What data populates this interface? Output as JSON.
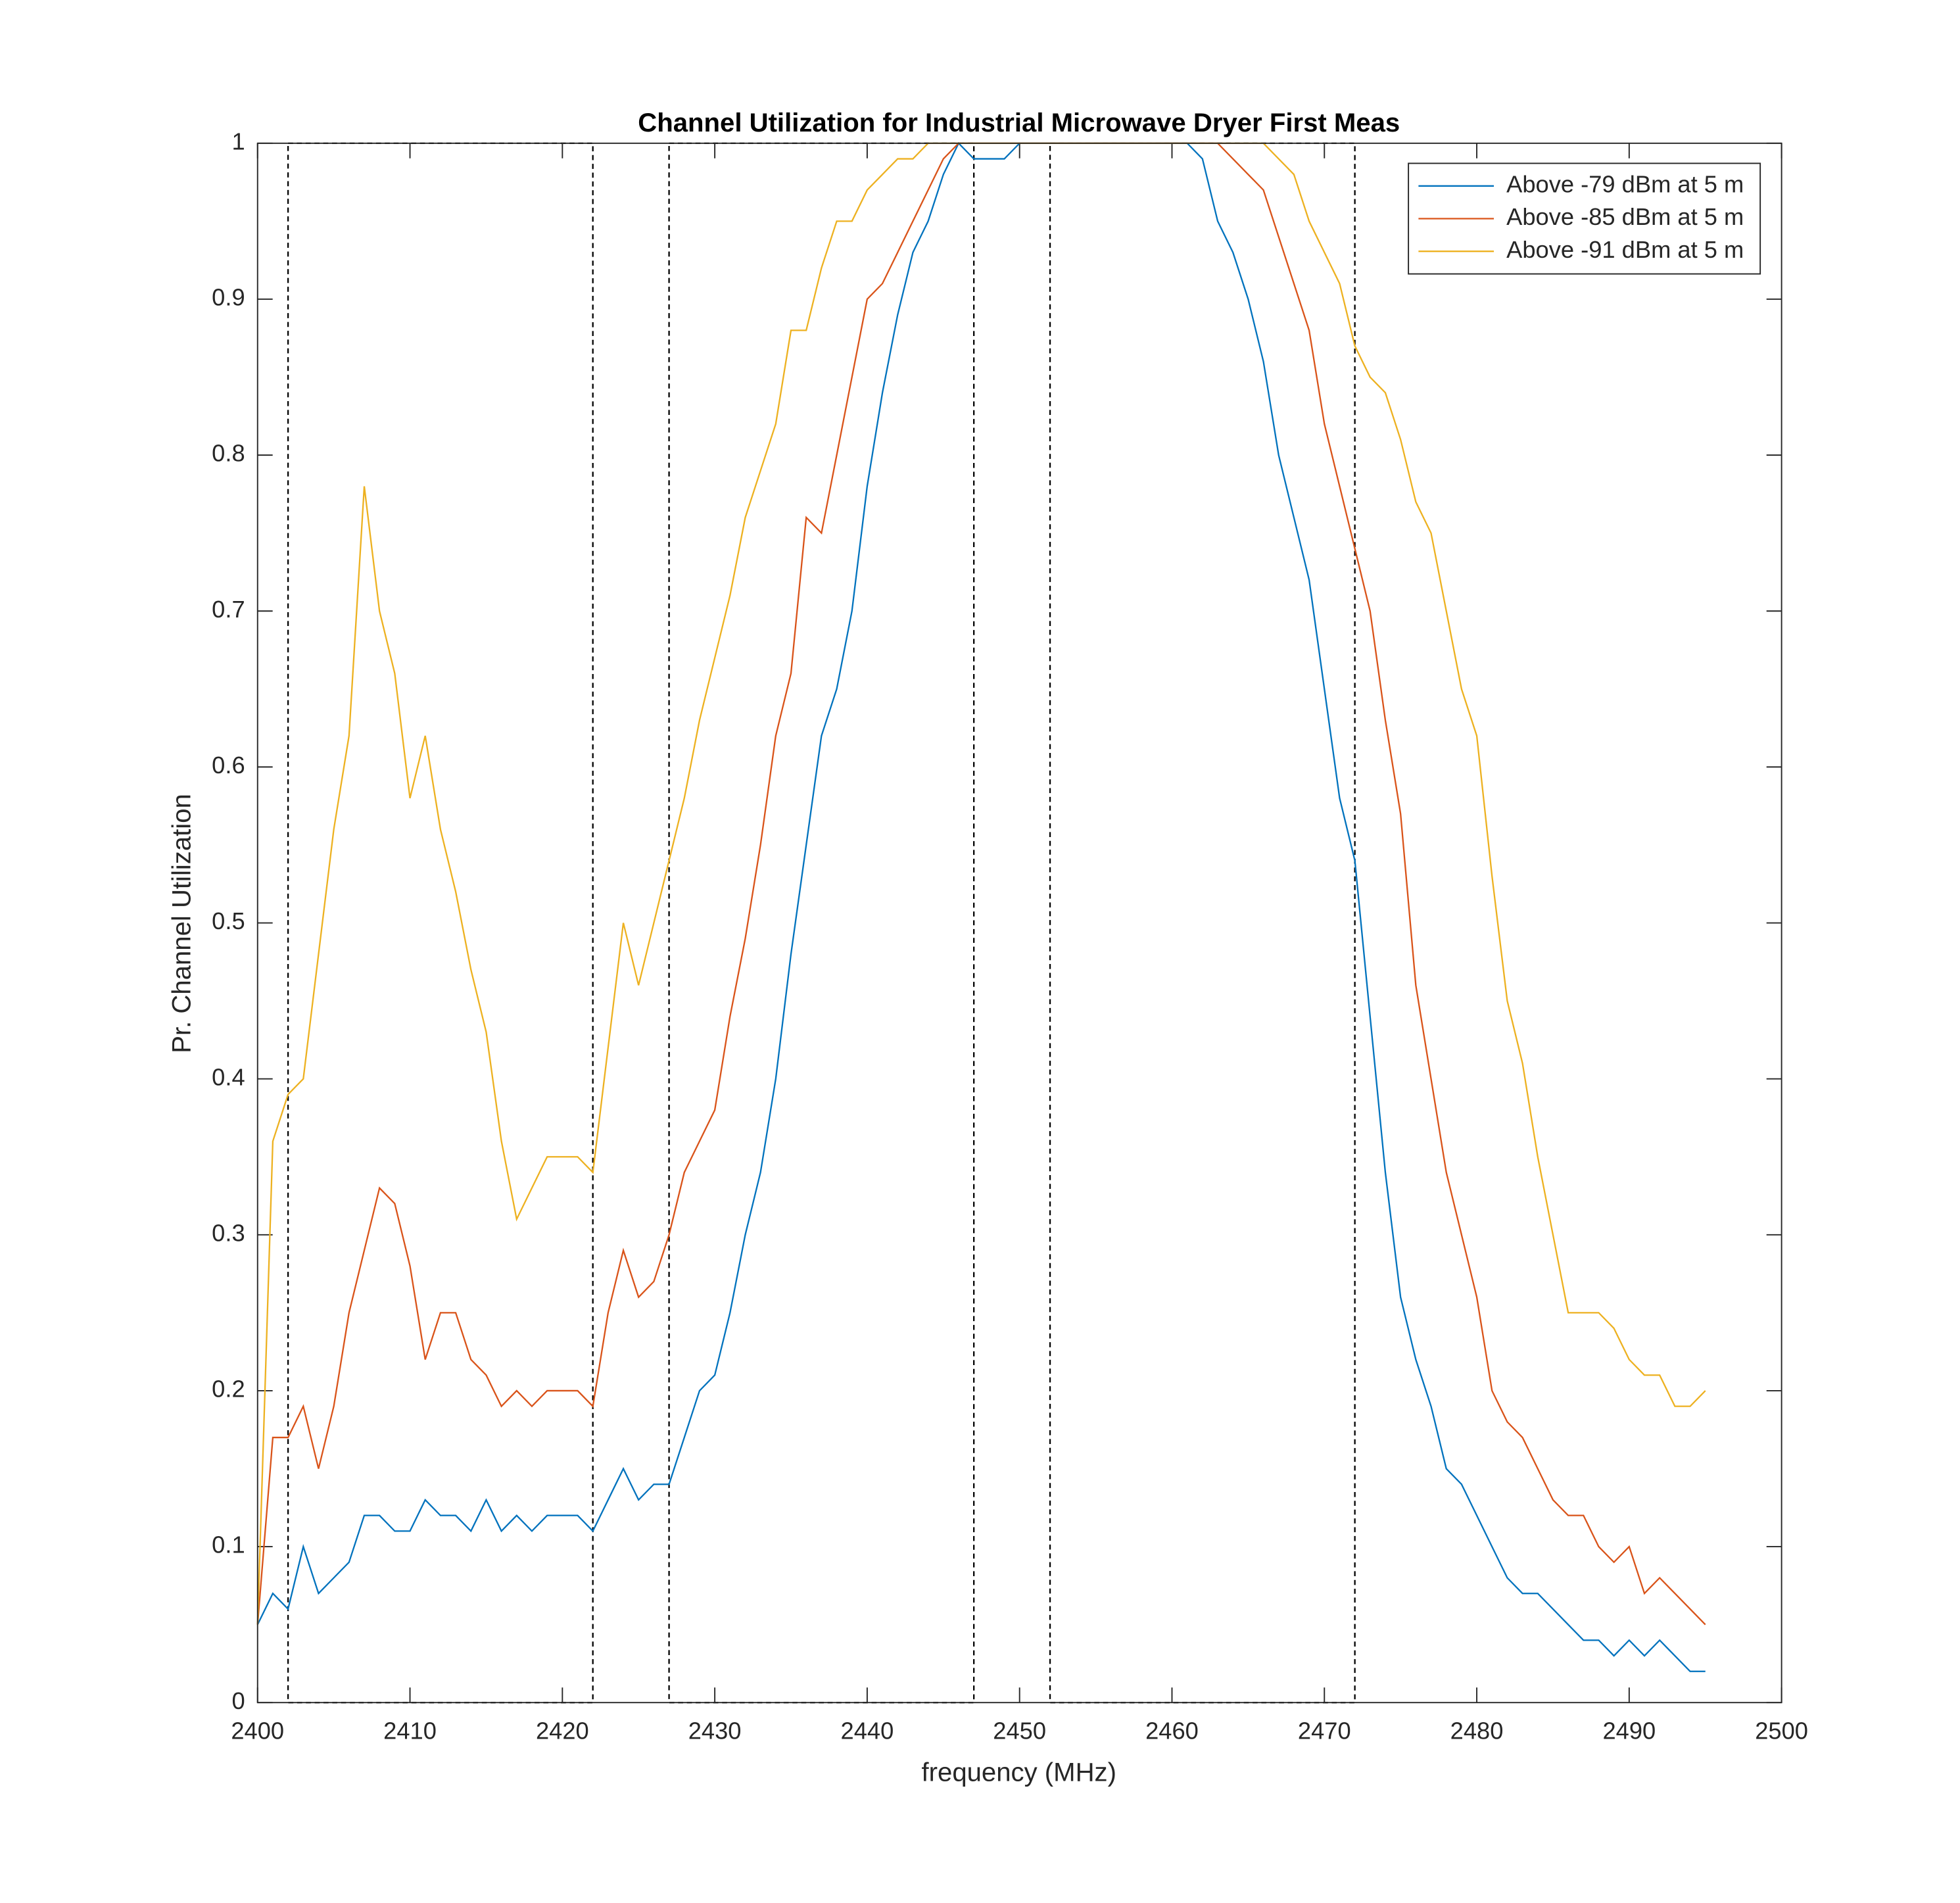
{
  "chart_data": {
    "type": "line",
    "title": "Channel Utilization for Industrial Microwave Dryer First Meas",
    "x_label": "frequency (MHz)",
    "y_label": "Pr. Channel Utilization",
    "x": [
      2400,
      2401,
      2402,
      2403,
      2404,
      2405,
      2406,
      2407,
      2408,
      2409,
      2410,
      2411,
      2412,
      2413,
      2414,
      2415,
      2416,
      2417,
      2418,
      2419,
      2420,
      2421,
      2422,
      2423,
      2424,
      2425,
      2426,
      2427,
      2428,
      2429,
      2430,
      2431,
      2432,
      2433,
      2434,
      2435,
      2436,
      2437,
      2438,
      2439,
      2440,
      2441,
      2442,
      2443,
      2444,
      2445,
      2446,
      2447,
      2448,
      2449,
      2450,
      2451,
      2452,
      2453,
      2454,
      2455,
      2456,
      2457,
      2458,
      2459,
      2460,
      2461,
      2462,
      2463,
      2464,
      2465,
      2466,
      2467,
      2468,
      2469,
      2470,
      2471,
      2472,
      2473,
      2474,
      2475,
      2476,
      2477,
      2478,
      2479,
      2480,
      2481,
      2482,
      2483,
      2484,
      2485,
      2486,
      2487,
      2488,
      2489,
      2490,
      2491,
      2492,
      2493,
      2494,
      2495
    ],
    "series": [
      {
        "name": "Above -79 dBm at 5 m",
        "color": "#0072bd",
        "values": [
          0.05,
          0.07,
          0.06,
          0.1,
          0.07,
          0.08,
          0.09,
          0.12,
          0.12,
          0.11,
          0.11,
          0.13,
          0.12,
          0.12,
          0.11,
          0.13,
          0.11,
          0.12,
          0.11,
          0.12,
          0.12,
          0.12,
          0.11,
          0.13,
          0.15,
          0.13,
          0.14,
          0.14,
          0.17,
          0.2,
          0.21,
          0.25,
          0.3,
          0.34,
          0.4,
          0.48,
          0.55,
          0.62,
          0.65,
          0.7,
          0.78,
          0.84,
          0.89,
          0.93,
          0.95,
          0.98,
          1,
          0.99,
          0.99,
          0.99,
          1,
          1,
          1,
          1,
          1,
          1,
          1,
          1,
          1,
          1,
          1,
          1,
          0.99,
          0.95,
          0.93,
          0.9,
          0.86,
          0.8,
          0.76,
          0.72,
          0.65,
          0.58,
          0.54,
          0.44,
          0.34,
          0.26,
          0.22,
          0.19,
          0.15,
          0.14,
          0.12,
          0.1,
          0.08,
          0.07,
          0.07,
          0.06,
          0.05,
          0.04,
          0.04,
          0.03,
          0.04,
          0.03,
          0.04,
          0.03,
          0.02,
          0.02
        ]
      },
      {
        "name": "Above -85 dBm at 5 m",
        "color": "#d95319",
        "values": [
          0.05,
          0.17,
          0.17,
          0.19,
          0.15,
          0.19,
          0.25,
          0.29,
          0.33,
          0.32,
          0.28,
          0.22,
          0.25,
          0.25,
          0.22,
          0.21,
          0.19,
          0.2,
          0.19,
          0.2,
          0.2,
          0.2,
          0.19,
          0.25,
          0.29,
          0.26,
          0.27,
          0.3,
          0.34,
          0.36,
          0.38,
          0.44,
          0.49,
          0.55,
          0.62,
          0.66,
          0.76,
          0.75,
          0.8,
          0.85,
          0.9,
          0.91,
          0.93,
          0.95,
          0.97,
          0.99,
          1,
          1,
          1,
          1,
          1,
          1,
          1,
          1,
          1,
          1,
          1,
          1,
          1,
          1,
          1,
          1,
          1,
          1,
          0.99,
          0.98,
          0.97,
          0.94,
          0.91,
          0.88,
          0.82,
          0.78,
          0.74,
          0.7,
          0.63,
          0.57,
          0.46,
          0.4,
          0.34,
          0.3,
          0.26,
          0.2,
          0.18,
          0.17,
          0.15,
          0.13,
          0.12,
          0.12,
          0.1,
          0.09,
          0.1,
          0.07,
          0.08,
          0.07,
          0.06,
          0.05
        ]
      },
      {
        "name": "Above -91 dBm at 5 m",
        "color": "#edb120",
        "values": [
          0.05,
          0.36,
          0.39,
          0.4,
          0.48,
          0.56,
          0.62,
          0.78,
          0.7,
          0.66,
          0.58,
          0.62,
          0.56,
          0.52,
          0.47,
          0.43,
          0.36,
          0.31,
          0.33,
          0.35,
          0.35,
          0.35,
          0.34,
          0.42,
          0.5,
          0.46,
          0.5,
          0.54,
          0.58,
          0.63,
          0.67,
          0.71,
          0.76,
          0.79,
          0.82,
          0.88,
          0.88,
          0.92,
          0.95,
          0.95,
          0.97,
          0.98,
          0.99,
          0.99,
          1,
          1,
          1,
          1,
          1,
          1,
          1,
          1,
          1,
          1,
          1,
          1,
          1,
          1,
          1,
          1,
          1,
          1,
          1,
          1,
          1,
          1,
          1,
          0.99,
          0.98,
          0.95,
          0.93,
          0.91,
          0.87,
          0.85,
          0.84,
          0.81,
          0.77,
          0.75,
          0.7,
          0.65,
          0.62,
          0.53,
          0.45,
          0.41,
          0.35,
          0.3,
          0.25,
          0.25,
          0.25,
          0.24,
          0.22,
          0.21,
          0.21,
          0.19,
          0.19,
          0.2
        ]
      }
    ],
    "channels": [
      [
        2402,
        2422
      ],
      [
        2427,
        2447
      ],
      [
        2452,
        2472
      ]
    ],
    "xlim": [
      2400,
      2500
    ],
    "xticks": [
      2400,
      2410,
      2420,
      2430,
      2440,
      2450,
      2460,
      2470,
      2480,
      2490,
      2500
    ],
    "ylim": [
      0,
      1
    ],
    "yticks": [
      0,
      0.1,
      0.2,
      0.3,
      0.4,
      0.5,
      0.6,
      0.7,
      0.8,
      0.9,
      1
    ],
    "legend": "northeast"
  }
}
